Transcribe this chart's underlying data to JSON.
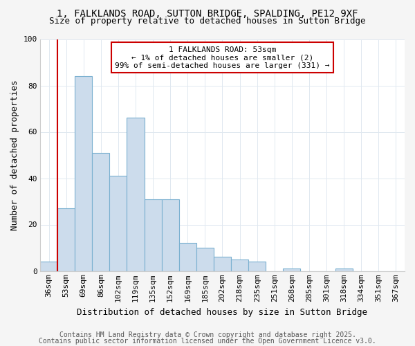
{
  "title_line1": "1, FALKLANDS ROAD, SUTTON BRIDGE, SPALDING, PE12 9XF",
  "title_line2": "Size of property relative to detached houses in Sutton Bridge",
  "xlabel": "Distribution of detached houses by size in Sutton Bridge",
  "ylabel": "Number of detached properties",
  "categories": [
    "36sqm",
    "53sqm",
    "69sqm",
    "86sqm",
    "102sqm",
    "119sqm",
    "135sqm",
    "152sqm",
    "169sqm",
    "185sqm",
    "202sqm",
    "218sqm",
    "235sqm",
    "251sqm",
    "268sqm",
    "285sqm",
    "301sqm",
    "318sqm",
    "334sqm",
    "351sqm",
    "367sqm"
  ],
  "values": [
    4,
    27,
    84,
    51,
    41,
    66,
    31,
    31,
    12,
    10,
    6,
    5,
    4,
    0,
    1,
    0,
    0,
    1,
    0,
    0,
    0
  ],
  "bar_color": "#ccdcec",
  "bar_edge_color": "#7ab0d0",
  "red_line_index": 1,
  "annotation_line1": "1 FALKLANDS ROAD: 53sqm",
  "annotation_line2": "← 1% of detached houses are smaller (2)",
  "annotation_line3": "99% of semi-detached houses are larger (331) →",
  "annotation_box_color": "#ffffff",
  "annotation_box_edge": "#cc0000",
  "ylim": [
    0,
    100
  ],
  "yticks": [
    0,
    20,
    40,
    60,
    80,
    100
  ],
  "plot_bg_color": "#ffffff",
  "fig_bg_color": "#f5f5f5",
  "grid_color": "#e0e8f0",
  "footer_line1": "Contains HM Land Registry data © Crown copyright and database right 2025.",
  "footer_line2": "Contains public sector information licensed under the Open Government Licence v3.0.",
  "red_line_color": "#cc0000",
  "title_fontsize": 10,
  "subtitle_fontsize": 9,
  "axis_label_fontsize": 9,
  "tick_fontsize": 8,
  "annotation_fontsize": 8,
  "footer_fontsize": 7
}
